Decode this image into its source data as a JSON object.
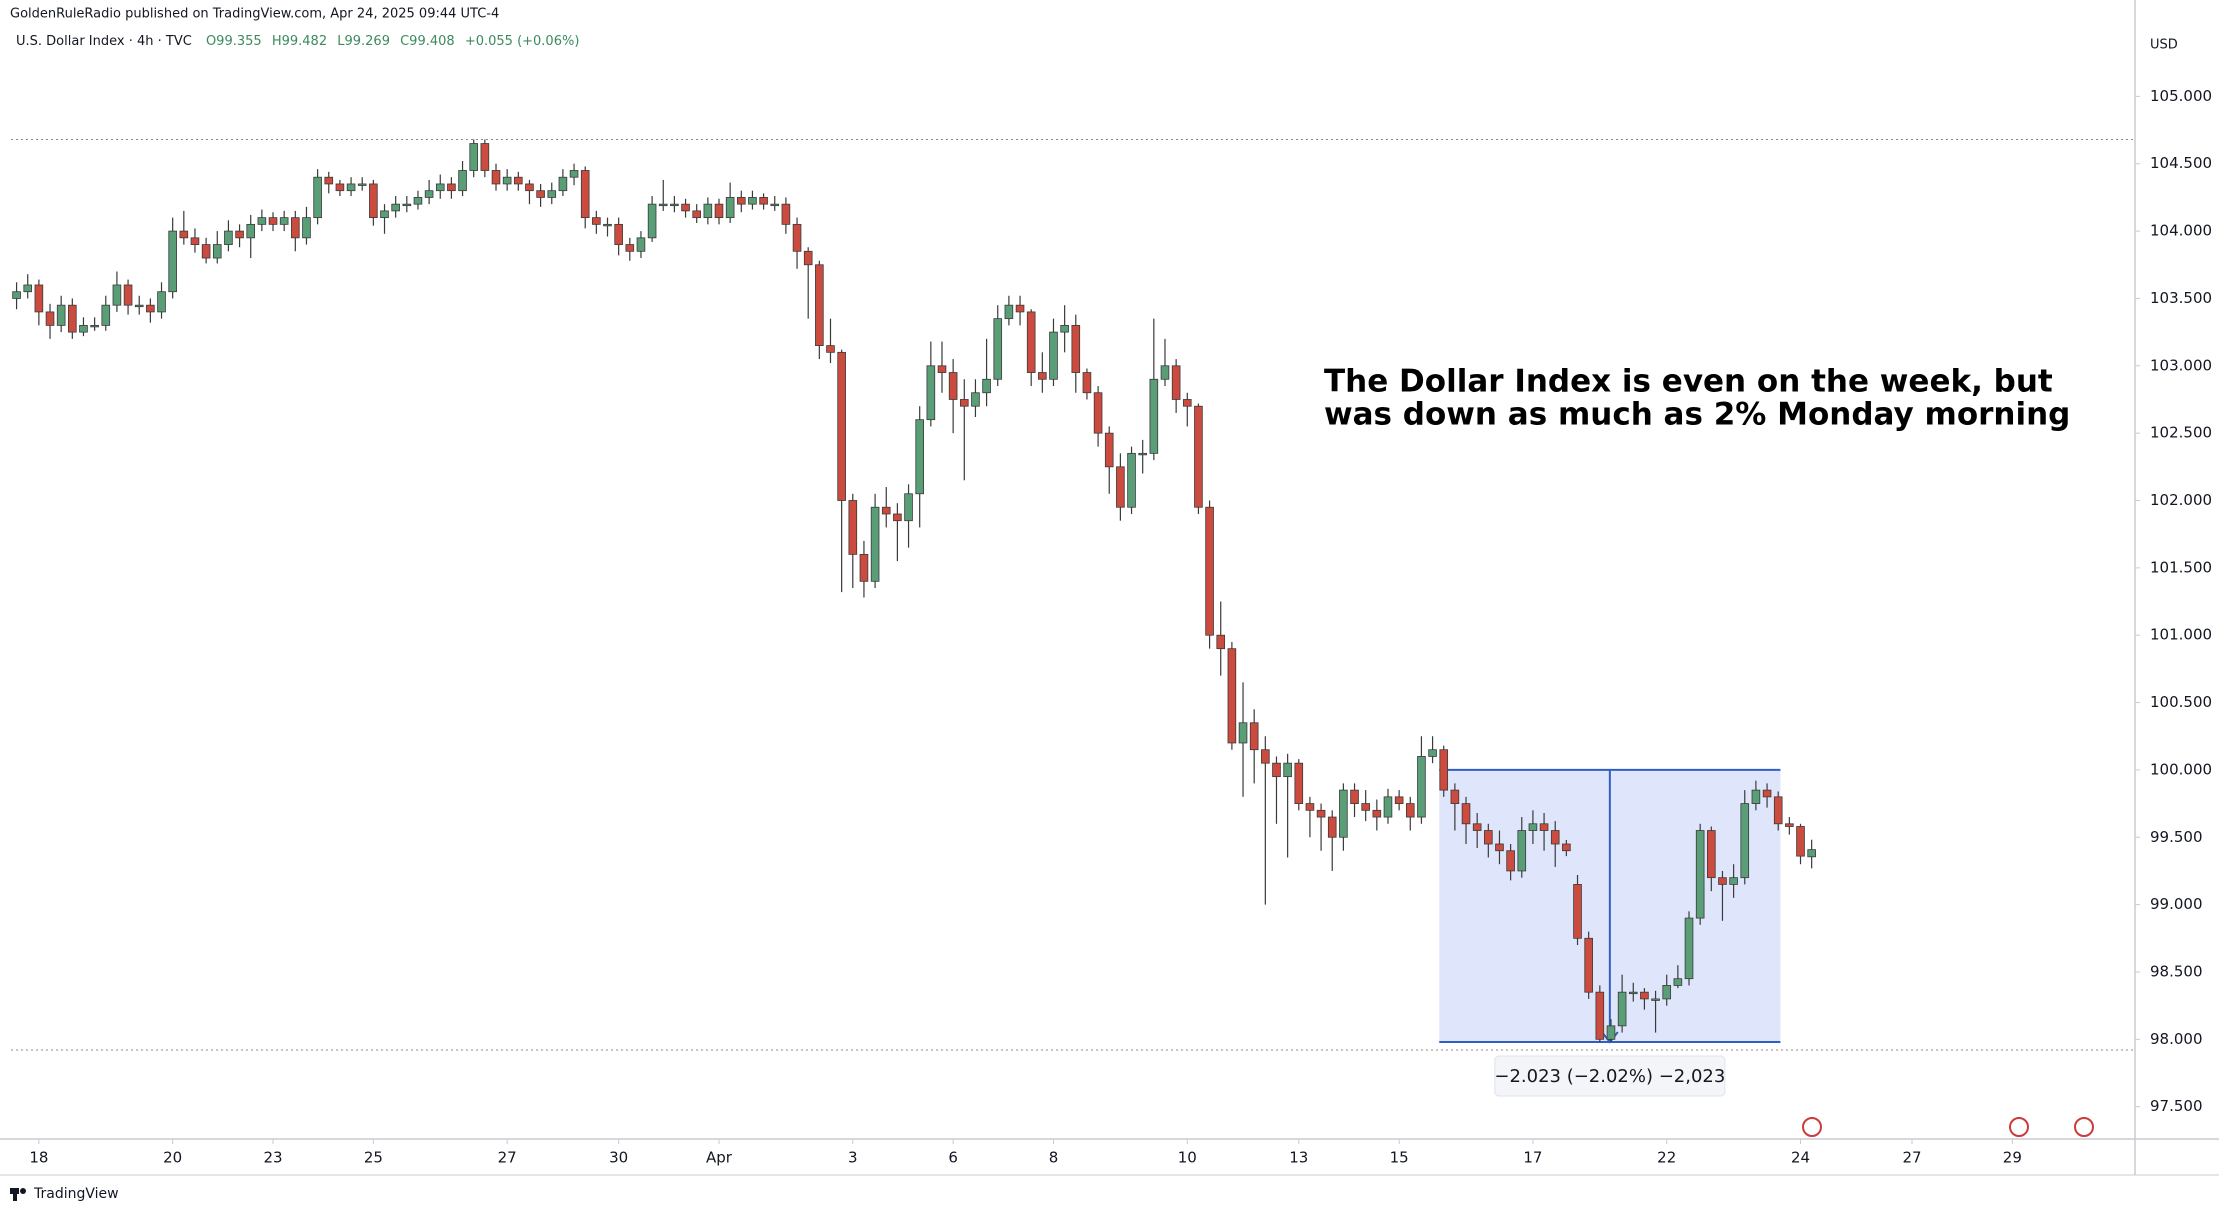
{
  "header": {
    "publisher": "GoldenRuleRadio published on TradingView.com, Apr 24, 2025 09:44 UTC-4",
    "symbol": "U.S. Dollar Index · 4h · TVC",
    "ohlc": [
      "O99.355",
      "H99.482",
      "L99.269",
      "C99.408",
      "+0.055 (+0.06%)"
    ]
  },
  "chart_data": {
    "type": "candlestick",
    "currency": "USD",
    "up_color": "#5a9e78",
    "down_color": "#cc4b3f",
    "open": [
      103.5,
      103.55,
      103.6,
      103.4,
      103.3,
      103.45,
      103.25,
      103.3,
      103.3,
      103.45,
      103.6,
      103.45,
      103.45,
      103.4,
      103.55,
      104.0,
      103.95,
      103.9,
      103.8,
      103.9,
      104.0,
      103.95,
      104.05,
      104.1,
      104.05,
      104.1,
      103.95,
      104.1,
      104.4,
      104.35,
      104.3,
      104.35,
      104.35,
      104.1,
      104.15,
      104.2,
      104.2,
      104.25,
      104.3,
      104.35,
      104.3,
      104.45,
      104.65,
      104.45,
      104.35,
      104.4,
      104.35,
      104.3,
      104.25,
      104.3,
      104.4,
      104.45,
      104.1,
      104.05,
      104.05,
      103.9,
      103.85,
      103.95,
      104.2,
      104.2,
      104.2,
      104.15,
      104.1,
      104.2,
      104.1,
      104.25,
      104.2,
      104.25,
      104.2,
      104.2,
      104.05,
      103.85,
      103.75,
      103.15,
      103.1,
      102.0,
      101.6,
      101.4,
      101.95,
      101.9,
      101.85,
      102.05,
      102.6,
      103.0,
      102.95,
      102.75,
      102.7,
      102.8,
      102.9,
      103.35,
      103.45,
      103.4,
      102.95,
      102.9,
      103.25,
      103.3,
      102.95,
      102.8,
      102.5,
      102.25,
      101.95,
      102.35,
      102.35,
      102.9,
      103.0,
      102.75,
      102.7,
      101.95,
      101.0,
      100.9,
      100.2,
      100.35,
      100.15,
      100.05,
      99.95,
      100.05,
      99.75,
      99.7,
      99.65,
      99.5,
      99.85,
      99.75,
      99.7,
      99.65,
      99.8,
      99.75,
      99.65,
      100.1,
      100.15,
      99.85,
      99.75,
      99.6,
      99.55,
      99.45,
      99.4,
      99.25,
      99.55,
      99.6,
      99.55,
      99.45,
      99.15,
      98.75,
      98.35,
      98.0,
      98.1,
      98.35,
      98.35,
      98.3,
      98.3,
      98.4,
      98.45,
      98.9,
      99.55,
      99.2,
      99.15,
      99.2,
      99.75,
      99.85,
      99.8,
      99.6,
      99.58,
      99.355
    ],
    "high": [
      103.62,
      103.68,
      103.64,
      103.46,
      103.52,
      103.5,
      103.36,
      103.36,
      103.52,
      103.7,
      103.64,
      103.52,
      103.5,
      103.62,
      104.1,
      104.15,
      104.02,
      103.95,
      104.0,
      104.08,
      104.05,
      104.12,
      104.16,
      104.14,
      104.15,
      104.15,
      104.18,
      104.46,
      104.44,
      104.38,
      104.4,
      104.4,
      104.38,
      104.2,
      104.26,
      104.26,
      104.3,
      104.38,
      104.42,
      104.4,
      104.52,
      104.68,
      104.68,
      104.5,
      104.46,
      104.44,
      104.38,
      104.35,
      104.36,
      104.46,
      104.5,
      104.48,
      104.15,
      104.1,
      104.1,
      103.95,
      104.0,
      104.26,
      104.38,
      104.26,
      104.24,
      104.2,
      104.25,
      104.24,
      104.36,
      104.3,
      104.3,
      104.28,
      104.26,
      104.25,
      104.1,
      103.88,
      103.78,
      103.35,
      103.12,
      102.05,
      101.7,
      102.05,
      102.1,
      101.98,
      102.12,
      102.7,
      103.18,
      103.18,
      103.05,
      102.9,
      102.9,
      103.2,
      103.45,
      103.52,
      103.52,
      103.42,
      103.1,
      103.35,
      103.45,
      103.38,
      102.98,
      102.85,
      102.55,
      102.35,
      102.4,
      102.45,
      103.35,
      103.2,
      103.05,
      102.8,
      102.72,
      102.0,
      101.25,
      100.95,
      100.65,
      100.45,
      100.25,
      100.1,
      100.12,
      100.08,
      99.8,
      99.75,
      99.7,
      99.9,
      99.9,
      99.85,
      99.78,
      99.86,
      99.85,
      99.8,
      100.25,
      100.25,
      100.18,
      99.9,
      99.8,
      99.68,
      99.6,
      99.55,
      99.45,
      99.65,
      99.7,
      99.68,
      99.62,
      99.48,
      99.22,
      98.8,
      98.4,
      98.15,
      98.48,
      98.42,
      98.38,
      98.36,
      98.48,
      98.55,
      98.95,
      99.6,
      99.58,
      99.25,
      99.3,
      99.85,
      99.92,
      99.9,
      99.84,
      99.65,
      99.6,
      99.482
    ],
    "low": [
      103.42,
      103.5,
      103.3,
      103.2,
      103.25,
      103.2,
      103.22,
      103.26,
      103.26,
      103.4,
      103.38,
      103.38,
      103.32,
      103.35,
      103.5,
      103.9,
      103.84,
      103.76,
      103.76,
      103.85,
      103.88,
      103.8,
      104.0,
      104.0,
      104.0,
      103.85,
      103.9,
      104.05,
      104.28,
      104.26,
      104.26,
      104.3,
      104.04,
      103.98,
      104.1,
      104.14,
      104.16,
      104.2,
      104.24,
      104.24,
      104.26,
      104.4,
      104.4,
      104.3,
      104.3,
      104.3,
      104.2,
      104.18,
      104.2,
      104.26,
      104.34,
      104.02,
      103.98,
      103.96,
      103.82,
      103.78,
      103.8,
      103.92,
      104.15,
      104.14,
      104.1,
      104.06,
      104.05,
      104.05,
      104.06,
      104.14,
      104.16,
      104.16,
      104.15,
      103.98,
      103.72,
      103.35,
      103.05,
      103.02,
      101.32,
      101.35,
      101.28,
      101.35,
      101.8,
      101.55,
      101.65,
      101.8,
      102.55,
      102.8,
      102.5,
      102.15,
      102.62,
      102.7,
      102.85,
      103.3,
      103.3,
      102.85,
      102.8,
      102.85,
      103.1,
      102.8,
      102.75,
      102.4,
      102.05,
      101.85,
      101.9,
      102.2,
      102.3,
      102.85,
      102.65,
      102.55,
      101.9,
      100.9,
      100.7,
      100.15,
      99.8,
      99.9,
      99.0,
      99.6,
      99.35,
      99.7,
      99.5,
      99.4,
      99.25,
      99.4,
      99.65,
      99.62,
      99.55,
      99.6,
      99.7,
      99.55,
      99.6,
      100.05,
      99.8,
      99.55,
      99.45,
      99.42,
      99.35,
      99.3,
      99.18,
      99.2,
      99.45,
      99.4,
      99.28,
      99.36,
      98.7,
      98.3,
      97.98,
      97.98,
      98.05,
      98.28,
      98.22,
      98.05,
      98.25,
      98.38,
      98.4,
      98.85,
      99.1,
      98.88,
      99.05,
      99.15,
      99.7,
      99.72,
      99.55,
      99.52,
      99.3,
      99.269
    ],
    "close": [
      103.55,
      103.6,
      103.4,
      103.3,
      103.45,
      103.25,
      103.3,
      103.3,
      103.45,
      103.6,
      103.45,
      103.45,
      103.4,
      103.55,
      104.0,
      103.95,
      103.9,
      103.8,
      103.9,
      104.0,
      103.95,
      104.05,
      104.1,
      104.05,
      104.1,
      103.95,
      104.1,
      104.4,
      104.35,
      104.3,
      104.35,
      104.35,
      104.1,
      104.15,
      104.2,
      104.2,
      104.25,
      104.3,
      104.35,
      104.3,
      104.45,
      104.65,
      104.45,
      104.35,
      104.4,
      104.35,
      104.3,
      104.25,
      104.3,
      104.4,
      104.45,
      104.1,
      104.05,
      104.05,
      103.9,
      103.85,
      103.95,
      104.2,
      104.2,
      104.2,
      104.15,
      104.1,
      104.2,
      104.1,
      104.25,
      104.2,
      104.25,
      104.2,
      104.2,
      104.05,
      103.85,
      103.75,
      103.15,
      103.1,
      102.0,
      101.6,
      101.4,
      101.95,
      101.9,
      101.85,
      102.05,
      102.6,
      103.0,
      102.95,
      102.75,
      102.7,
      102.8,
      102.9,
      103.35,
      103.45,
      103.4,
      102.95,
      102.9,
      103.25,
      103.3,
      102.95,
      102.8,
      102.5,
      102.25,
      101.95,
      102.35,
      102.35,
      102.9,
      103.0,
      102.75,
      102.7,
      101.95,
      101.0,
      100.9,
      100.2,
      100.35,
      100.15,
      100.05,
      99.95,
      100.05,
      99.75,
      99.7,
      99.65,
      99.5,
      99.85,
      99.75,
      99.7,
      99.65,
      99.8,
      99.75,
      99.65,
      100.1,
      100.15,
      99.85,
      99.75,
      99.6,
      99.55,
      99.45,
      99.4,
      99.25,
      99.55,
      99.6,
      99.55,
      99.45,
      99.4,
      98.75,
      98.35,
      98.0,
      98.1,
      98.35,
      98.35,
      98.3,
      98.3,
      98.4,
      98.45,
      98.9,
      99.55,
      99.2,
      99.15,
      99.2,
      99.75,
      99.85,
      99.8,
      99.6,
      99.58,
      99.36,
      99.408
    ],
    "xlim": [
      -0.5,
      190
    ],
    "xticks": [
      {
        "value": 2,
        "label": "18"
      },
      {
        "value": 14,
        "label": "20"
      },
      {
        "value": 23,
        "label": "23"
      },
      {
        "value": 32,
        "label": "25"
      },
      {
        "value": 44,
        "label": "27"
      },
      {
        "value": 54,
        "label": "30"
      },
      {
        "value": 63,
        "label": "Apr"
      },
      {
        "value": 75,
        "label": "3"
      },
      {
        "value": 84,
        "label": "6"
      },
      {
        "value": 93,
        "label": "8"
      },
      {
        "value": 105,
        "label": "10"
      },
      {
        "value": 115,
        "label": "13"
      },
      {
        "value": 124,
        "label": "15"
      },
      {
        "value": 136,
        "label": "17"
      },
      {
        "value": 148,
        "label": "22"
      },
      {
        "value": 160,
        "label": "24"
      },
      {
        "value": 170,
        "label": "27"
      },
      {
        "value": 179,
        "label": "29"
      }
    ],
    "ylim": [
      97.26,
      105.53
    ],
    "yticks": [
      {
        "value": 97.5,
        "label": "97.500"
      },
      {
        "value": 98,
        "label": "98.000"
      },
      {
        "value": 98.5,
        "label": "98.500"
      },
      {
        "value": 99,
        "label": "99.000"
      },
      {
        "value": 99.5,
        "label": "99.500"
      },
      {
        "value": 100,
        "label": "100.000"
      },
      {
        "value": 100.5,
        "label": "100.500"
      },
      {
        "value": 101,
        "label": "101.000"
      },
      {
        "value": 101.5,
        "label": "101.500"
      },
      {
        "value": 102,
        "label": "102.000"
      },
      {
        "value": 102.5,
        "label": "102.500"
      },
      {
        "value": 103,
        "label": "103.000"
      },
      {
        "value": 103.5,
        "label": "103.500"
      },
      {
        "value": 104,
        "label": "104.000"
      },
      {
        "value": 104.5,
        "label": "104.500"
      },
      {
        "value": 105,
        "label": "105.000"
      }
    ],
    "annotation": [
      "The Dollar Index is even on the week, but",
      "was down as much as 2% Monday morning"
    ],
    "measure": {
      "label": "−2.023 (−2.02%) −2,023",
      "x": [
        127.6,
        158.2
      ],
      "y": [
        97.98,
        100.0
      ],
      "fill": "#dbe3fb",
      "color": "#2f5fc4"
    }
  },
  "footer": "TradingView"
}
